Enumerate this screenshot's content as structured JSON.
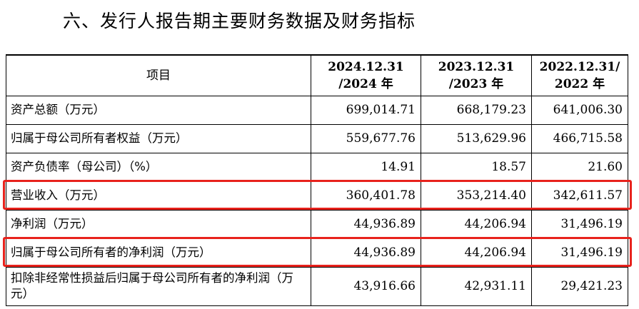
{
  "heading": "六、发行人报告期主要财务数据及财务指标",
  "table": {
    "header": {
      "item": "项目",
      "periods": [
        {
          "line1": "2024.12.31",
          "line2": "/2024 年"
        },
        {
          "line1": "2023.12.31",
          "line2": "/2023 年"
        },
        {
          "line1": "2022.12.31/",
          "line2": "2022 年"
        }
      ]
    },
    "rows": [
      {
        "label": "资产总额（万元）",
        "values": [
          "699,014.71",
          "668,179.23",
          "641,006.30"
        ]
      },
      {
        "label": "归属于母公司所有者权益（万元）",
        "values": [
          "559,677.76",
          "513,629.96",
          "466,715.58"
        ]
      },
      {
        "label": "资产负债率（母公司）（%）",
        "values": [
          "14.91",
          "18.57",
          "21.60"
        ]
      },
      {
        "label": "营业收入（万元）",
        "values": [
          "360,401.78",
          "353,214.40",
          "342,611.57"
        ],
        "highlight": true
      },
      {
        "label": "净利润（万元）",
        "values": [
          "44,936.89",
          "44,206.94",
          "31,496.19"
        ]
      },
      {
        "label": "归属于母公司所有者的净利润（万元）",
        "values": [
          "44,936.89",
          "44,206.94",
          "31,496.19"
        ],
        "highlight": true
      },
      {
        "label": "扣除非经常性损益后归属于母公司所有者的净利润（万元）",
        "values": [
          "43,916.66",
          "42,931.11",
          "29,421.23"
        ]
      }
    ]
  },
  "colors": {
    "highlight": "#e8221c"
  }
}
